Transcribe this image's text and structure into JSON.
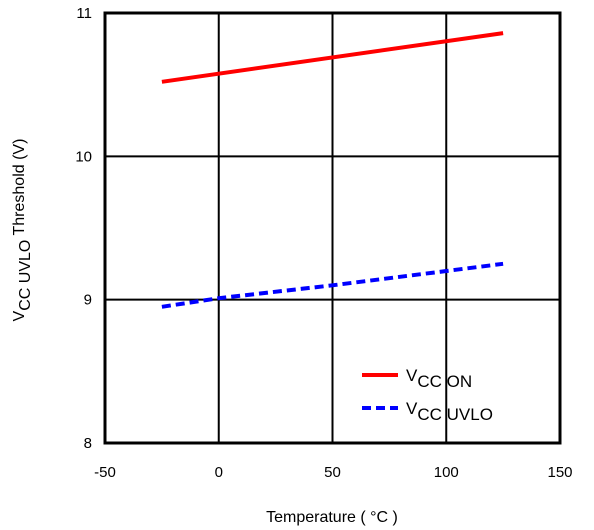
{
  "chart_data": {
    "type": "line",
    "xlabel": "Temperature ( °C )",
    "ylabel_main": "V",
    "ylabel_sub": "CC UVLO",
    "ylabel_rest": " Threshold (V)",
    "xlim": [
      -50,
      150
    ],
    "ylim": [
      8,
      11
    ],
    "xticks": [
      -50,
      0,
      50,
      100,
      150
    ],
    "yticks": [
      8,
      9,
      10,
      11
    ],
    "grid": true,
    "legend_position": "bottom-right",
    "series": [
      {
        "name_main": "V",
        "name_sub": "CC ON",
        "color": "#ff0000",
        "style": "solid",
        "x": [
          -25,
          125
        ],
        "y": [
          10.52,
          10.86
        ]
      },
      {
        "name_main": "V",
        "name_sub": "CC UVLO",
        "color": "#0000ff",
        "style": "dashed",
        "x": [
          -25,
          0,
          50,
          100,
          125
        ],
        "y": [
          8.95,
          9.01,
          9.1,
          9.2,
          9.25
        ]
      }
    ]
  }
}
